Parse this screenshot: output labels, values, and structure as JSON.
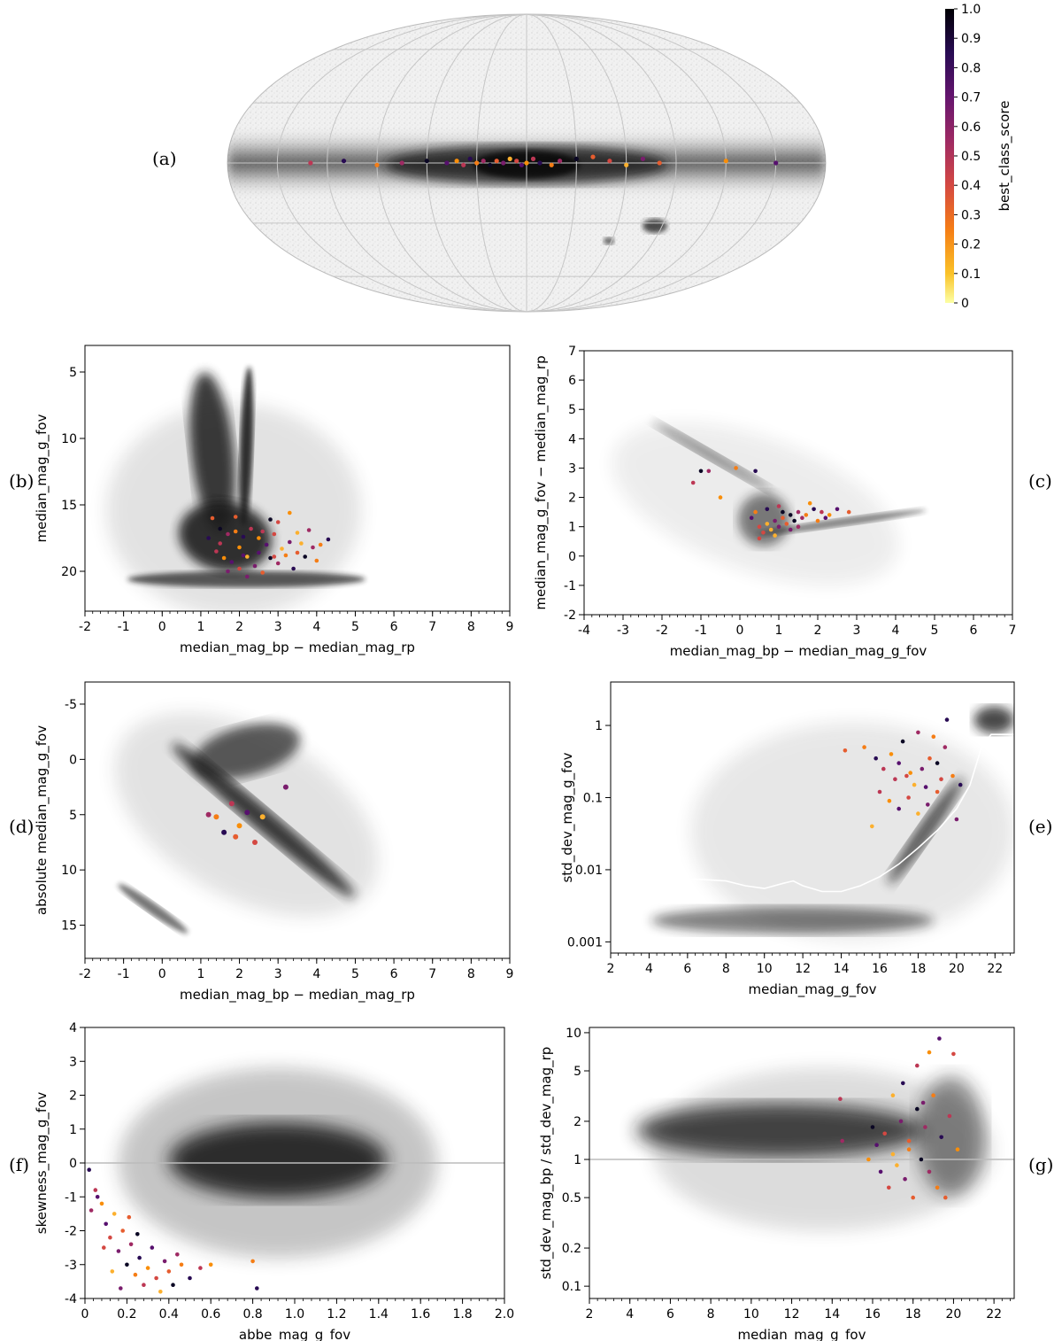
{
  "colorbar": {
    "label": "best_class_score",
    "ticks": [
      "0",
      "0.1",
      "0.2",
      "0.3",
      "0.4",
      "0.5",
      "0.6",
      "0.7",
      "0.8",
      "0.9",
      "1.0"
    ]
  },
  "chart_data": [
    {
      "id": "a",
      "panel_letter": "(a)",
      "type": "scatter",
      "projection": "mollweide",
      "xlabel": "",
      "ylabel": "",
      "description_background": "all-sky density map of reference sources in grey",
      "highlight_points_lon_lat": [
        [
          -40,
          3
        ],
        [
          -30,
          2
        ],
        [
          -20,
          1
        ],
        [
          -15,
          -1
        ],
        [
          -8,
          0
        ],
        [
          -4,
          2
        ],
        [
          0,
          0
        ],
        [
          3,
          -1
        ],
        [
          6,
          1
        ],
        [
          10,
          2
        ],
        [
          14,
          0
        ],
        [
          18,
          1
        ],
        [
          22,
          -1
        ],
        [
          26,
          1
        ],
        [
          30,
          0
        ],
        [
          34,
          2
        ],
        [
          38,
          -1
        ],
        [
          42,
          1
        ],
        [
          48,
          0
        ],
        [
          -50,
          1
        ],
        [
          -60,
          -1
        ],
        [
          -70,
          2
        ],
        [
          -80,
          0
        ],
        [
          60,
          1
        ],
        [
          75,
          0
        ],
        [
          90,
          -1
        ],
        [
          110,
          1
        ],
        [
          130,
          0
        ],
        [
          -120,
          1
        ],
        [
          -150,
          0
        ]
      ]
    },
    {
      "id": "b",
      "panel_letter": "(b)",
      "type": "scatter",
      "xlabel": "median_mag_bp − median_mag_rp",
      "ylabel": "median_mag_g_fov",
      "xlim": [
        -2,
        9
      ],
      "ylim": [
        23,
        3
      ],
      "y_inverted": true,
      "xticks": [
        "-2",
        "-1",
        "0",
        "1",
        "2",
        "3",
        "4",
        "5",
        "6",
        "7",
        "8",
        "9"
      ],
      "yticks": [
        "5",
        "10",
        "15",
        "20"
      ],
      "points": [
        [
          1.3,
          16.0
        ],
        [
          1.5,
          16.8
        ],
        [
          1.7,
          17.2
        ],
        [
          1.9,
          17.0
        ],
        [
          2.1,
          17.4
        ],
        [
          2.3,
          16.8
        ],
        [
          2.5,
          17.5
        ],
        [
          2.7,
          18.0
        ],
        [
          2.9,
          17.2
        ],
        [
          3.1,
          18.3
        ],
        [
          3.3,
          17.8
        ],
        [
          3.5,
          18.6
        ],
        [
          3.7,
          18.9
        ],
        [
          3.9,
          18.2
        ],
        [
          4.1,
          18.0
        ],
        [
          4.3,
          17.6
        ],
        [
          1.4,
          18.5
        ],
        [
          1.6,
          19.0
        ],
        [
          1.8,
          19.3
        ],
        [
          2.0,
          19.8
        ],
        [
          2.2,
          18.9
        ],
        [
          2.4,
          19.6
        ],
        [
          2.6,
          20.1
        ],
        [
          2.8,
          19.0
        ],
        [
          3.0,
          19.4
        ],
        [
          3.2,
          18.8
        ],
        [
          3.4,
          19.8
        ],
        [
          1.5,
          17.9
        ],
        [
          2.0,
          18.2
        ],
        [
          2.5,
          18.6
        ],
        [
          3.0,
          16.3
        ],
        [
          3.5,
          17.1
        ],
        [
          2.2,
          20.4
        ],
        [
          1.9,
          15.9
        ],
        [
          2.8,
          16.1
        ],
        [
          3.8,
          16.9
        ],
        [
          4.0,
          19.2
        ],
        [
          1.2,
          17.5
        ],
        [
          2.6,
          17.0
        ],
        [
          3.3,
          15.6
        ],
        [
          2.1,
          18.8
        ],
        [
          2.9,
          18.9
        ],
        [
          3.6,
          17.9
        ],
        [
          1.7,
          20.0
        ]
      ]
    },
    {
      "id": "c",
      "panel_letter": "(c)",
      "type": "scatter",
      "xlabel": "median_mag_bp − median_mag_g_fov",
      "ylabel": "median_mag_g_fov − median_mag_rp",
      "xlim": [
        -4,
        7
      ],
      "ylim": [
        -2,
        7
      ],
      "xticks": [
        "-4",
        "-3",
        "-2",
        "-1",
        "0",
        "1",
        "2",
        "3",
        "4",
        "5",
        "6",
        "7"
      ],
      "yticks": [
        "-2",
        "-1",
        "0",
        "1",
        "2",
        "3",
        "4",
        "5",
        "6",
        "7"
      ],
      "points": [
        [
          -1.0,
          2.9
        ],
        [
          -0.8,
          2.9
        ],
        [
          -0.1,
          3.0
        ],
        [
          0.4,
          2.9
        ],
        [
          -1.2,
          2.5
        ],
        [
          -0.5,
          2.0
        ],
        [
          0.3,
          1.3
        ],
        [
          0.5,
          1.0
        ],
        [
          0.7,
          1.1
        ],
        [
          0.9,
          1.2
        ],
        [
          1.1,
          1.3
        ],
        [
          1.3,
          1.4
        ],
        [
          1.5,
          1.5
        ],
        [
          1.7,
          1.4
        ],
        [
          1.9,
          1.6
        ],
        [
          2.1,
          1.5
        ],
        [
          2.3,
          1.4
        ],
        [
          2.5,
          1.6
        ],
        [
          0.6,
          0.8
        ],
        [
          0.8,
          0.9
        ],
        [
          1.0,
          1.0
        ],
        [
          1.2,
          1.1
        ],
        [
          1.4,
          1.2
        ],
        [
          1.6,
          1.3
        ],
        [
          0.4,
          1.5
        ],
        [
          0.7,
          1.6
        ],
        [
          1.0,
          1.7
        ],
        [
          1.8,
          1.8
        ],
        [
          2.2,
          1.3
        ],
        [
          0.5,
          0.6
        ],
        [
          0.9,
          0.7
        ],
        [
          1.3,
          0.9
        ],
        [
          2.8,
          1.5
        ],
        [
          1.1,
          1.5
        ],
        [
          1.5,
          1.0
        ],
        [
          2.0,
          1.2
        ]
      ]
    },
    {
      "id": "d",
      "panel_letter": "(d)",
      "type": "scatter",
      "xlabel": "median_mag_bp − median_mag_rp",
      "ylabel": "absolute median_mag_g_fov",
      "xlim": [
        -2,
        9
      ],
      "ylim": [
        18,
        -7
      ],
      "y_inverted": true,
      "xticks": [
        "-2",
        "-1",
        "0",
        "1",
        "2",
        "3",
        "4",
        "5",
        "6",
        "7",
        "8",
        "9"
      ],
      "yticks": [
        "-5",
        "0",
        "5",
        "10",
        "15"
      ],
      "points": [
        [
          1.2,
          5.0
        ],
        [
          1.4,
          5.2
        ],
        [
          1.6,
          6.6
        ],
        [
          1.8,
          4.0
        ],
        [
          2.0,
          6.0
        ],
        [
          2.2,
          4.8
        ],
        [
          2.4,
          7.5
        ],
        [
          2.6,
          5.2
        ],
        [
          3.2,
          2.5
        ],
        [
          1.9,
          7.0
        ]
      ]
    },
    {
      "id": "e",
      "panel_letter": "(e)",
      "type": "scatter",
      "xlabel": "median_mag_g_fov",
      "ylabel": "std_dev_mag_g_fov",
      "xlim": [
        2,
        23
      ],
      "ylim": [
        0.0007,
        4
      ],
      "y_scale": "log",
      "xticks": [
        "2",
        "4",
        "6",
        "8",
        "10",
        "12",
        "14",
        "16",
        "18",
        "20",
        "22"
      ],
      "yticks": [
        "0.001",
        "0.01",
        "0.1",
        "1"
      ],
      "points": [
        [
          15.2,
          0.5
        ],
        [
          15.8,
          0.35
        ],
        [
          16.2,
          0.25
        ],
        [
          16.6,
          0.4
        ],
        [
          17.0,
          0.3
        ],
        [
          17.4,
          0.2
        ],
        [
          17.8,
          0.15
        ],
        [
          18.2,
          0.25
        ],
        [
          18.6,
          0.35
        ],
        [
          19.0,
          0.3
        ],
        [
          19.4,
          0.5
        ],
        [
          19.8,
          0.2
        ],
        [
          20.2,
          0.15
        ],
        [
          16.0,
          0.12
        ],
        [
          16.5,
          0.09
        ],
        [
          17.0,
          0.07
        ],
        [
          17.5,
          0.1
        ],
        [
          18.0,
          0.06
        ],
        [
          18.5,
          0.08
        ],
        [
          19.0,
          0.12
        ],
        [
          17.2,
          0.6
        ],
        [
          18.0,
          0.8
        ],
        [
          18.8,
          0.7
        ],
        [
          19.5,
          1.2
        ],
        [
          16.8,
          0.18
        ],
        [
          17.6,
          0.22
        ],
        [
          18.4,
          0.14
        ],
        [
          19.2,
          0.18
        ],
        [
          15.6,
          0.04
        ],
        [
          20.0,
          0.05
        ],
        [
          14.2,
          0.45
        ]
      ]
    },
    {
      "id": "f",
      "panel_letter": "(f)",
      "type": "scatter",
      "xlabel": "abbe_mag_g_fov",
      "ylabel": "skewness_mag_g_fov",
      "xlim": [
        0,
        2
      ],
      "ylim": [
        -4,
        4
      ],
      "xticks": [
        "0",
        "0.2",
        "0.4",
        "0.6",
        "0.8",
        "1.0",
        "1.2",
        "1.4",
        "1.6",
        "1.8",
        "2.0"
      ],
      "yticks": [
        "-4",
        "-3",
        "-2",
        "-1",
        "0",
        "1",
        "2",
        "3",
        "4"
      ],
      "points": [
        [
          0.02,
          -0.2
        ],
        [
          0.05,
          -0.8
        ],
        [
          0.08,
          -1.2
        ],
        [
          0.1,
          -1.8
        ],
        [
          0.12,
          -2.2
        ],
        [
          0.14,
          -1.5
        ],
        [
          0.16,
          -2.6
        ],
        [
          0.18,
          -2.0
        ],
        [
          0.2,
          -3.0
        ],
        [
          0.22,
          -2.4
        ],
        [
          0.24,
          -3.3
        ],
        [
          0.26,
          -2.8
        ],
        [
          0.28,
          -3.6
        ],
        [
          0.3,
          -3.1
        ],
        [
          0.32,
          -2.5
        ],
        [
          0.34,
          -3.4
        ],
        [
          0.36,
          -3.8
        ],
        [
          0.38,
          -2.9
        ],
        [
          0.4,
          -3.2
        ],
        [
          0.42,
          -3.6
        ],
        [
          0.44,
          -2.7
        ],
        [
          0.46,
          -3.0
        ],
        [
          0.5,
          -3.4
        ],
        [
          0.55,
          -3.1
        ],
        [
          0.6,
          -3.0
        ],
        [
          0.06,
          -1.0
        ],
        [
          0.09,
          -2.5
        ],
        [
          0.13,
          -3.2
        ],
        [
          0.17,
          -3.7
        ],
        [
          0.21,
          -1.6
        ],
        [
          0.25,
          -2.1
        ],
        [
          0.03,
          -1.4
        ],
        [
          0.8,
          -2.9
        ],
        [
          0.82,
          -3.7
        ]
      ]
    },
    {
      "id": "g",
      "panel_letter": "(g)",
      "type": "scatter",
      "xlabel": "median_mag_g_fov",
      "ylabel": "std_dev_mag_bp / std_dev_mag_rp",
      "xlim": [
        2,
        23
      ],
      "ylim": [
        0.08,
        11
      ],
      "y_scale": "log",
      "xticks": [
        "2",
        "4",
        "6",
        "8",
        "10",
        "12",
        "14",
        "16",
        "18",
        "20",
        "22"
      ],
      "yticks": [
        "0.1",
        "0.2",
        "0.5",
        "1",
        "2",
        "5",
        "10"
      ],
      "points": [
        [
          14.4,
          3.0
        ],
        [
          15.8,
          1.0
        ],
        [
          16.2,
          1.3
        ],
        [
          16.6,
          1.6
        ],
        [
          17.0,
          1.1
        ],
        [
          17.4,
          2.0
        ],
        [
          17.8,
          1.4
        ],
        [
          18.2,
          2.5
        ],
        [
          18.6,
          1.8
        ],
        [
          19.0,
          3.2
        ],
        [
          19.4,
          1.5
        ],
        [
          19.8,
          2.2
        ],
        [
          20.2,
          1.2
        ],
        [
          16.4,
          0.8
        ],
        [
          16.8,
          0.6
        ],
        [
          17.2,
          0.9
        ],
        [
          17.6,
          0.7
        ],
        [
          18.0,
          0.5
        ],
        [
          18.4,
          1.0
        ],
        [
          18.8,
          0.8
        ],
        [
          19.2,
          0.6
        ],
        [
          17.5,
          4.0
        ],
        [
          18.2,
          5.5
        ],
        [
          18.8,
          7.0
        ],
        [
          19.3,
          9.0
        ],
        [
          20.0,
          6.8
        ],
        [
          17.0,
          3.2
        ],
        [
          18.5,
          2.8
        ],
        [
          19.6,
          0.5
        ],
        [
          16.0,
          1.8
        ],
        [
          14.5,
          1.4
        ],
        [
          17.8,
          1.2
        ]
      ]
    }
  ]
}
